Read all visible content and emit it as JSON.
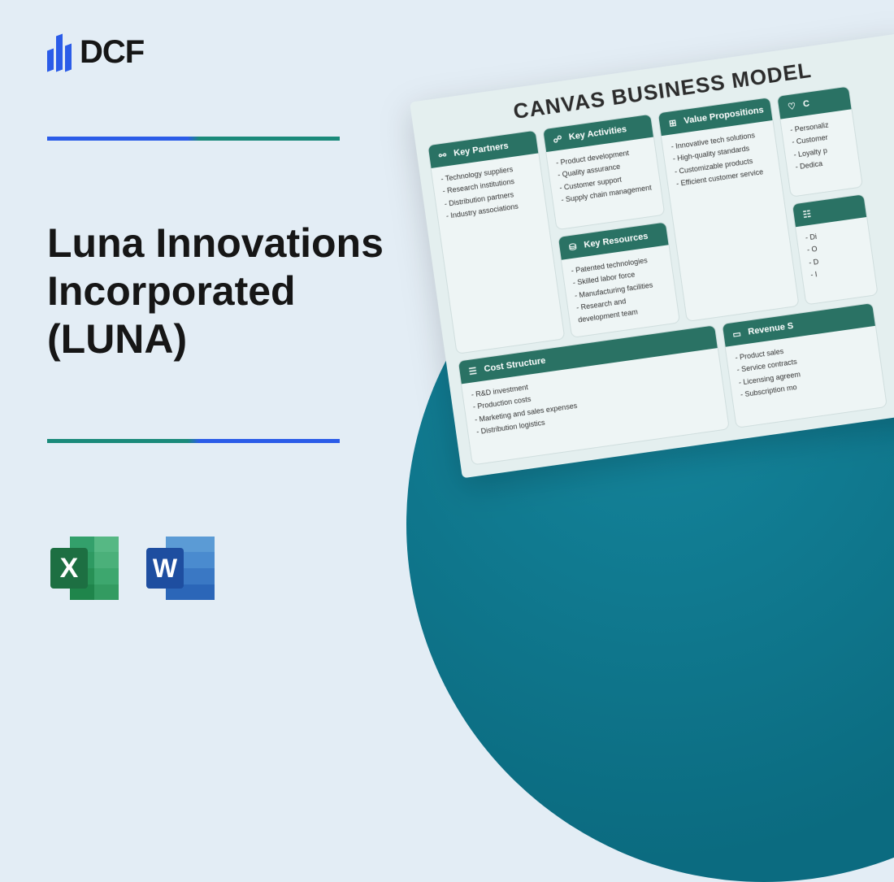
{
  "brand": {
    "name": "DCF"
  },
  "title": "Luna Innovations Incorporated (LUNA)",
  "canvas": {
    "heading": "CANVAS BUSINESS MODEL",
    "colors": {
      "header_bg": "#2a7264",
      "card_bg": "#eef5f5",
      "page_bg": "#e3edf5",
      "circle_bg": "#0f7a90"
    },
    "blocks": {
      "key_partners": {
        "title": "Key Partners",
        "items": [
          "Technology suppliers",
          "Research institutions",
          "Distribution partners",
          "Industry associations"
        ]
      },
      "key_activities": {
        "title": "Key Activities",
        "items": [
          "Product development",
          "Quality assurance",
          "Customer support",
          "Supply chain management"
        ]
      },
      "key_resources": {
        "title": "Key Resources",
        "items": [
          "Patented technologies",
          "Skilled labor force",
          "Manufacturing facilities",
          "Research and development team"
        ]
      },
      "value_propositions": {
        "title": "Value Propositions",
        "items": [
          "Innovative tech solutions",
          "High-quality standards",
          "Customizable products",
          "Efficient customer service"
        ]
      },
      "customer_relationships": {
        "title": "C",
        "items": [
          "Personaliz",
          "Customer",
          "Loyalty p",
          "Dedica"
        ]
      },
      "channels": {
        "title": "",
        "items": [
          "Di",
          "O",
          "D",
          "I"
        ]
      },
      "cost_structure": {
        "title": "Cost Structure",
        "items": [
          "R&D investment",
          "Production costs",
          "Marketing and sales expenses",
          "Distribution logistics"
        ]
      },
      "revenue_streams": {
        "title": "Revenue S",
        "items": [
          "Product sales",
          "Service contracts",
          "Licensing agreem",
          "Subscription mo"
        ]
      }
    }
  },
  "app_icons": {
    "excel": {
      "letter": "X",
      "color": "#1d6f42",
      "light": "#33a06b",
      "tile": "#2e8b57"
    },
    "word": {
      "letter": "W",
      "color": "#1e4ea0",
      "light": "#3a78d6",
      "tile": "#2b66c4"
    }
  }
}
